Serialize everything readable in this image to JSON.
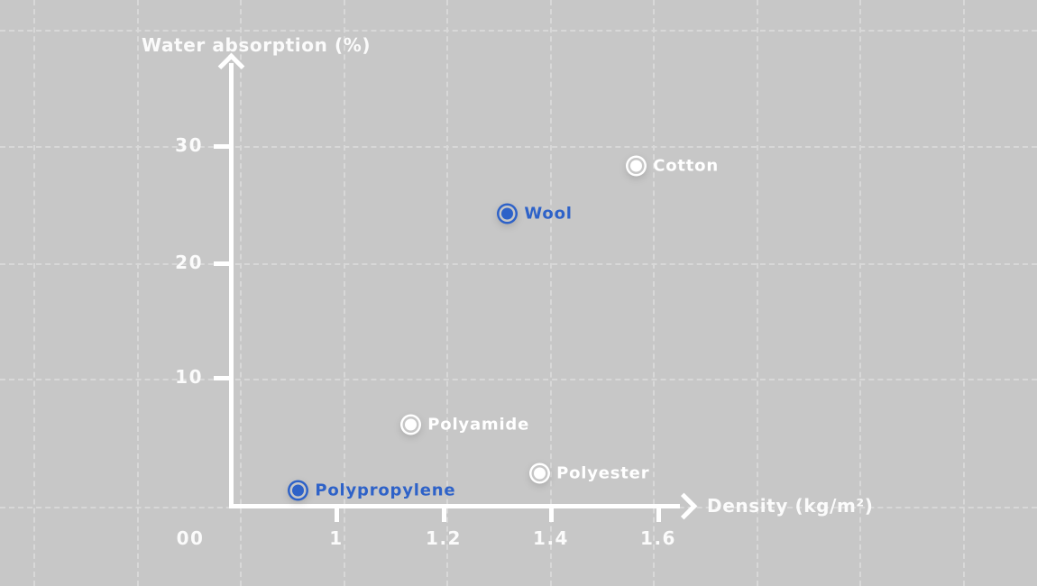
{
  "chart_data": {
    "type": "scatter",
    "xlabel": "Density (kg/m²)",
    "ylabel": "Water absorption (%)",
    "x_ticks": [
      "1",
      "1.2",
      "1.4",
      "1.6"
    ],
    "x_tick_values": [
      1,
      1.2,
      1.4,
      1.6
    ],
    "y_ticks": [
      "30",
      "20",
      "10"
    ],
    "y_tick_values": [
      30,
      20,
      10
    ],
    "origin_label": "00",
    "xlim": [
      0.8,
      1.67
    ],
    "ylim": [
      0,
      38
    ],
    "grid": "dashed",
    "legend": "none",
    "points": [
      {
        "label": "Cotton",
        "x": 1.56,
        "y": 28.4,
        "color": "#ffffff"
      },
      {
        "label": "Wool",
        "x": 1.32,
        "y": 24.3,
        "color": "#2e62c8"
      },
      {
        "label": "Polyamide",
        "x": 1.14,
        "y": 6.1,
        "color": "#ffffff"
      },
      {
        "label": "Polyester",
        "x": 1.38,
        "y": 1.9,
        "color": "#ffffff"
      },
      {
        "label": "Polypropylene",
        "x": 0.93,
        "y": 0.5,
        "color": "#2e62c8"
      }
    ],
    "colors": {
      "background": "#c7c7c7",
      "grid": "#d8d8d8",
      "axis": "#ffffff",
      "accent_blue": "#2e62c8",
      "label_white": "#fbfbfb"
    }
  }
}
